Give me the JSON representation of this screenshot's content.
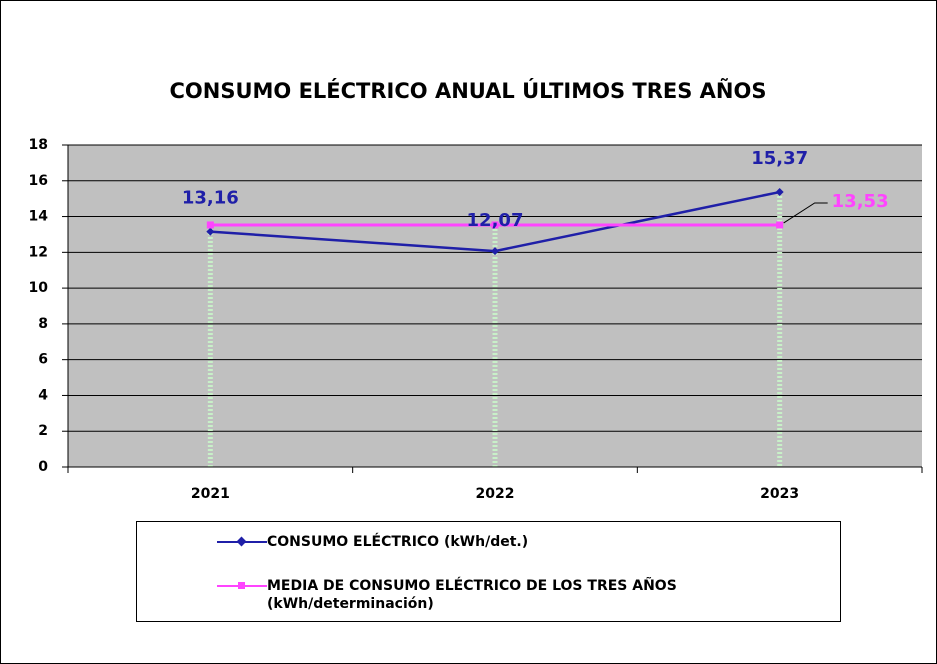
{
  "chart_data": {
    "type": "line",
    "title": "CONSUMO ELÉCTRICO ANUAL ÚLTIMOS TRES AÑOS",
    "categories": [
      "2021",
      "2022",
      "2023"
    ],
    "series": [
      {
        "name": "CONSUMO ELÉCTRICO (kWh/det.)",
        "color": "#1f1fa8",
        "values": [
          13.16,
          12.07,
          15.37
        ],
        "value_labels": [
          "13,16",
          "12,07",
          "15,37"
        ]
      },
      {
        "name": "MEDIA DE CONSUMO ELÉCTRICO DE LOS TRES AÑOS\n(kWh/determinación)",
        "color": "#ff44ff",
        "values": [
          13.53,
          13.53,
          13.53
        ],
        "value_labels": [
          null,
          null,
          "13,53"
        ]
      }
    ],
    "ylim": [
      0,
      18
    ],
    "yticks": [
      0,
      2,
      4,
      6,
      8,
      10,
      12,
      14,
      16,
      18
    ],
    "grid": true,
    "legend": "bottom"
  }
}
